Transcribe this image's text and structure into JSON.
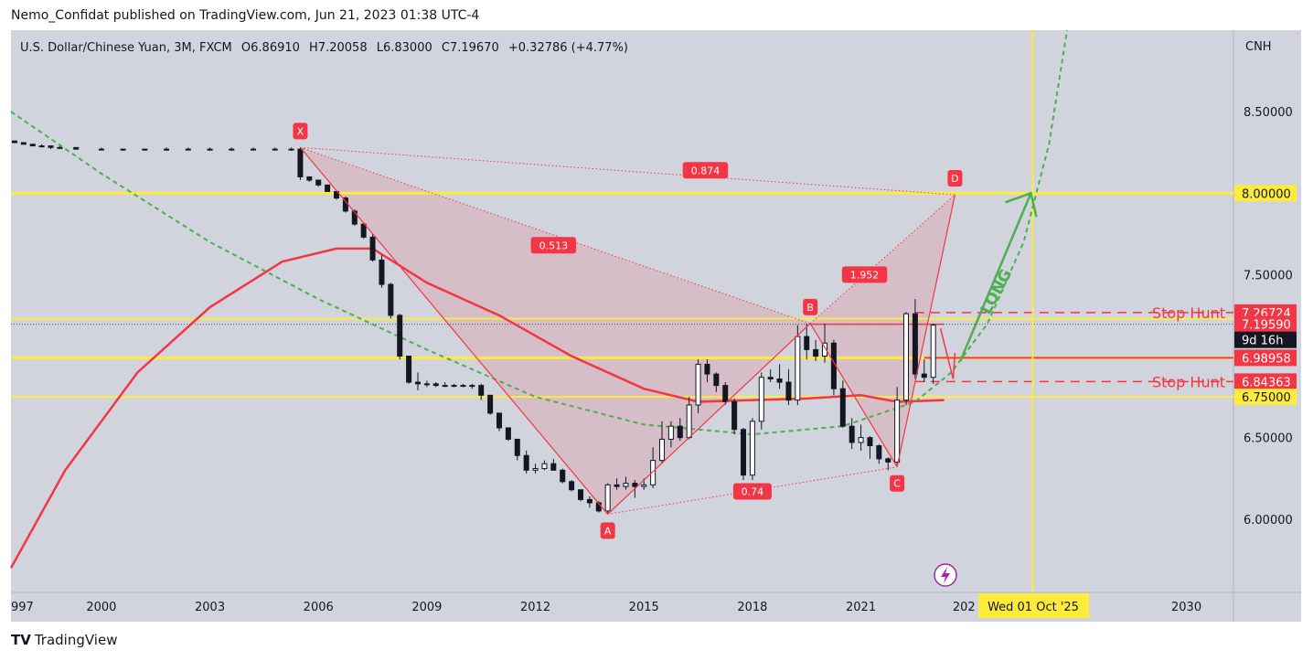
{
  "header": {
    "published": "Nemo_Confidat published on TradingView.com, Jun 21, 2023 01:38 UTC-4"
  },
  "legend": {
    "symbol": "U.S. Dollar/Chinese Yuan, 3M, FXCM",
    "open_label": "O",
    "open": "6.86910",
    "high_label": "H",
    "high": "7.20058",
    "low_label": "L",
    "low": "6.83000",
    "close_label": "C",
    "close": "7.19670",
    "change": "+0.32786 (+4.77%)"
  },
  "price_axis": {
    "currency": "CNH",
    "ticks": [
      "8.50000",
      "7.50000",
      "6.50000",
      "6.00000"
    ],
    "badges": [
      {
        "text": "8.00000",
        "price": 8.0,
        "bg": "#ffeb3b",
        "fg": "#131722"
      },
      {
        "text": "7.26724",
        "price": 7.26724,
        "bg": "#f23645",
        "fg": "#ffffff"
      },
      {
        "text": "7.19590",
        "price": 7.1959,
        "bg": "#f23645",
        "fg": "#ffffff"
      },
      {
        "text": "9d 16h",
        "price": 7.1,
        "bg": "#131722",
        "fg": "#ffffff"
      },
      {
        "text": "6.98958",
        "price": 6.98958,
        "bg": "#f23645",
        "fg": "#ffffff"
      },
      {
        "text": "6.84363",
        "price": 6.84363,
        "bg": "#f23645",
        "fg": "#ffffff"
      },
      {
        "text": "6.75000",
        "price": 6.75,
        "bg": "#ffeb3b",
        "fg": "#131722"
      }
    ]
  },
  "time_axis": {
    "ticks": [
      {
        "label": "997",
        "year": 1997.5
      },
      {
        "label": "2000",
        "year": 2000
      },
      {
        "label": "2003",
        "year": 2003
      },
      {
        "label": "2006",
        "year": 2006
      },
      {
        "label": "2009",
        "year": 2009
      },
      {
        "label": "2012",
        "year": 2012
      },
      {
        "label": "2015",
        "year": 2015
      },
      {
        "label": "2018",
        "year": 2018
      },
      {
        "label": "2021",
        "year": 2021
      },
      {
        "label": "202",
        "year": 2023.85
      },
      {
        "label": "7",
        "year": 2027.2
      },
      {
        "label": "2030",
        "year": 2030
      }
    ],
    "crosshair_label": "Wed 01 Oct '25",
    "crosshair_year": 2025.75
  },
  "chart_data": {
    "type": "candlestick",
    "symbol": "USD/CNH",
    "timeframe": "3M",
    "x_range": [
      1997.5,
      2031.3
    ],
    "y_range": [
      5.55,
      9.0
    ],
    "horizontal_levels": [
      8.0,
      7.23,
      6.98958,
      6.75
    ],
    "stop_hunt_levels": [
      7.26724,
      6.84363
    ],
    "harmonic_pattern": {
      "points": [
        {
          "label": "X",
          "year": 2005.5,
          "price": 8.28
        },
        {
          "label": "A",
          "year": 2014.0,
          "price": 6.03
        },
        {
          "label": "B",
          "year": 2019.6,
          "price": 7.2
        },
        {
          "label": "C",
          "year": 2022.0,
          "price": 6.32
        },
        {
          "label": "D",
          "year": 2023.6,
          "price": 7.99
        }
      ],
      "ratios": [
        {
          "text": "0.874",
          "year": 2016.7,
          "price": 8.14
        },
        {
          "text": "0.513",
          "year": 2012.5,
          "price": 7.68
        },
        {
          "text": "1.952",
          "year": 2021.1,
          "price": 7.5
        },
        {
          "text": "0.74",
          "year": 2018.0,
          "price": 6.17
        }
      ]
    },
    "annotations": {
      "stop_hunt_label": "Stop Hunt",
      "long_label": "LONG"
    },
    "moving_average": [
      [
        1997.5,
        5.7
      ],
      [
        1999,
        6.3
      ],
      [
        2001,
        6.9
      ],
      [
        2003,
        7.3
      ],
      [
        2005,
        7.58
      ],
      [
        2006.5,
        7.66
      ],
      [
        2007.5,
        7.66
      ],
      [
        2009,
        7.45
      ],
      [
        2011,
        7.25
      ],
      [
        2013,
        7.0
      ],
      [
        2015,
        6.8
      ],
      [
        2016.5,
        6.72
      ],
      [
        2018,
        6.73
      ],
      [
        2019.5,
        6.74
      ],
      [
        2021,
        6.76
      ],
      [
        2022,
        6.72
      ],
      [
        2023.3,
        6.73
      ]
    ],
    "trend_curve": [
      [
        1997.5,
        8.5
      ],
      [
        2000,
        8.12
      ],
      [
        2003,
        7.7
      ],
      [
        2006,
        7.35
      ],
      [
        2009,
        7.04
      ],
      [
        2012,
        6.75
      ],
      [
        2015,
        6.58
      ],
      [
        2018,
        6.52
      ],
      [
        2020.5,
        6.57
      ],
      [
        2022.5,
        6.72
      ],
      [
        2023.5,
        6.9
      ],
      [
        2024.5,
        7.2
      ],
      [
        2025.5,
        7.7
      ],
      [
        2026.2,
        8.3
      ],
      [
        2026.7,
        9.0
      ]
    ],
    "candles": [
      [
        1997.6,
        8.32,
        8.32,
        8.31,
        8.31
      ],
      [
        1997.85,
        8.31,
        8.31,
        8.3,
        8.3
      ],
      [
        1998.1,
        8.3,
        8.3,
        8.29,
        8.29
      ],
      [
        1998.35,
        8.29,
        8.3,
        8.28,
        8.29
      ],
      [
        1998.6,
        8.29,
        8.29,
        8.27,
        8.28
      ],
      [
        1998.85,
        8.28,
        8.29,
        8.27,
        8.28
      ],
      [
        1999.3,
        8.28,
        8.28,
        8.27,
        8.27
      ],
      [
        2000.0,
        8.27,
        8.28,
        8.27,
        8.27
      ],
      [
        2000.6,
        8.27,
        8.27,
        8.26,
        8.27
      ],
      [
        2001.2,
        8.27,
        8.27,
        8.26,
        8.27
      ],
      [
        2001.8,
        8.27,
        8.28,
        8.26,
        8.27
      ],
      [
        2002.4,
        8.27,
        8.28,
        8.27,
        8.27
      ],
      [
        2003.0,
        8.27,
        8.28,
        8.26,
        8.27
      ],
      [
        2003.6,
        8.27,
        8.28,
        8.26,
        8.27
      ],
      [
        2004.2,
        8.27,
        8.28,
        8.27,
        8.27
      ],
      [
        2004.8,
        8.27,
        8.28,
        8.27,
        8.27
      ],
      [
        2005.25,
        8.27,
        8.28,
        8.26,
        8.27
      ],
      [
        2005.5,
        8.27,
        8.28,
        8.08,
        8.1
      ],
      [
        2005.75,
        8.1,
        8.1,
        8.07,
        8.08
      ],
      [
        2006.0,
        8.08,
        8.08,
        8.04,
        8.05
      ],
      [
        2006.25,
        8.05,
        8.05,
        8.01,
        8.01
      ],
      [
        2006.5,
        8.01,
        8.01,
        7.96,
        7.97
      ],
      [
        2006.75,
        7.97,
        7.98,
        7.88,
        7.89
      ],
      [
        2007.0,
        7.89,
        7.9,
        7.8,
        7.81
      ],
      [
        2007.25,
        7.81,
        7.82,
        7.72,
        7.73
      ],
      [
        2007.5,
        7.73,
        7.75,
        7.58,
        7.59
      ],
      [
        2007.75,
        7.59,
        7.62,
        7.42,
        7.44
      ],
      [
        2008.0,
        7.44,
        7.45,
        7.23,
        7.25
      ],
      [
        2008.25,
        7.25,
        7.26,
        6.98,
        7.0
      ],
      [
        2008.5,
        7.0,
        7.0,
        6.83,
        6.84
      ],
      [
        2008.75,
        6.84,
        6.9,
        6.79,
        6.83
      ],
      [
        2009.0,
        6.83,
        6.85,
        6.81,
        6.83
      ],
      [
        2009.25,
        6.83,
        6.84,
        6.81,
        6.82
      ],
      [
        2009.5,
        6.82,
        6.84,
        6.81,
        6.82
      ],
      [
        2009.75,
        6.82,
        6.83,
        6.81,
        6.82
      ],
      [
        2010.0,
        6.82,
        6.83,
        6.81,
        6.82
      ],
      [
        2010.25,
        6.82,
        6.83,
        6.8,
        6.82
      ],
      [
        2010.5,
        6.82,
        6.83,
        6.73,
        6.76
      ],
      [
        2010.75,
        6.76,
        6.76,
        6.64,
        6.65
      ],
      [
        2011.0,
        6.65,
        6.65,
        6.54,
        6.56
      ],
      [
        2011.25,
        6.56,
        6.56,
        6.48,
        6.49
      ],
      [
        2011.5,
        6.49,
        6.49,
        6.36,
        6.39
      ],
      [
        2011.75,
        6.39,
        6.42,
        6.28,
        6.3
      ],
      [
        2012.0,
        6.3,
        6.34,
        6.28,
        6.31
      ],
      [
        2012.25,
        6.31,
        6.36,
        6.3,
        6.34
      ],
      [
        2012.5,
        6.34,
        6.37,
        6.3,
        6.3
      ],
      [
        2012.75,
        6.3,
        6.31,
        6.22,
        6.23
      ],
      [
        2013.0,
        6.23,
        6.24,
        6.17,
        6.18
      ],
      [
        2013.25,
        6.18,
        6.18,
        6.11,
        6.12
      ],
      [
        2013.5,
        6.12,
        6.14,
        6.07,
        6.1
      ],
      [
        2013.75,
        6.1,
        6.11,
        6.04,
        6.05
      ],
      [
        2014.0,
        6.05,
        6.22,
        6.03,
        6.21
      ],
      [
        2014.25,
        6.21,
        6.25,
        6.18,
        6.2
      ],
      [
        2014.5,
        6.2,
        6.26,
        6.18,
        6.22
      ],
      [
        2014.75,
        6.22,
        6.24,
        6.13,
        6.2
      ],
      [
        2015.0,
        6.2,
        6.25,
        6.18,
        6.21
      ],
      [
        2015.25,
        6.21,
        6.44,
        6.19,
        6.36
      ],
      [
        2015.5,
        6.36,
        6.6,
        6.34,
        6.49
      ],
      [
        2015.75,
        6.49,
        6.6,
        6.44,
        6.57
      ],
      [
        2016.0,
        6.57,
        6.62,
        6.48,
        6.5
      ],
      [
        2016.25,
        6.5,
        6.75,
        6.49,
        6.7
      ],
      [
        2016.5,
        6.7,
        6.98,
        6.65,
        6.95
      ],
      [
        2016.75,
        6.95,
        6.98,
        6.84,
        6.89
      ],
      [
        2017.0,
        6.89,
        6.9,
        6.78,
        6.82
      ],
      [
        2017.25,
        6.82,
        6.84,
        6.7,
        6.72
      ],
      [
        2017.5,
        6.72,
        6.74,
        6.52,
        6.55
      ],
      [
        2017.75,
        6.55,
        6.56,
        6.24,
        6.27
      ],
      [
        2018.0,
        6.27,
        6.62,
        6.24,
        6.6
      ],
      [
        2018.25,
        6.6,
        6.9,
        6.55,
        6.87
      ],
      [
        2018.5,
        6.87,
        6.92,
        6.84,
        6.86
      ],
      [
        2018.75,
        6.86,
        6.95,
        6.8,
        6.84
      ],
      [
        2019.0,
        6.84,
        6.92,
        6.7,
        6.73
      ],
      [
        2019.25,
        6.73,
        7.19,
        6.7,
        7.12
      ],
      [
        2019.5,
        7.12,
        7.2,
        6.98,
        7.04
      ],
      [
        2019.75,
        7.04,
        7.1,
        6.97,
        7.0
      ],
      [
        2020.0,
        7.0,
        7.2,
        6.96,
        7.08
      ],
      [
        2020.25,
        7.08,
        7.1,
        6.76,
        6.8
      ],
      [
        2020.5,
        6.8,
        6.85,
        6.56,
        6.57
      ],
      [
        2020.75,
        6.57,
        6.62,
        6.43,
        6.47
      ],
      [
        2021.0,
        6.47,
        6.58,
        6.42,
        6.5
      ],
      [
        2021.25,
        6.5,
        6.51,
        6.37,
        6.45
      ],
      [
        2021.5,
        6.45,
        6.46,
        6.34,
        6.37
      ],
      [
        2021.75,
        6.37,
        6.38,
        6.3,
        6.35
      ],
      [
        2022.0,
        6.35,
        6.81,
        6.33,
        6.73
      ],
      [
        2022.25,
        6.73,
        7.27,
        6.7,
        7.26
      ],
      [
        2022.5,
        7.26,
        7.35,
        6.86,
        6.89
      ],
      [
        2022.75,
        6.89,
        6.98,
        6.84,
        6.87
      ],
      [
        2023.0,
        6.87,
        7.2,
        6.83,
        7.19
      ]
    ]
  }
}
